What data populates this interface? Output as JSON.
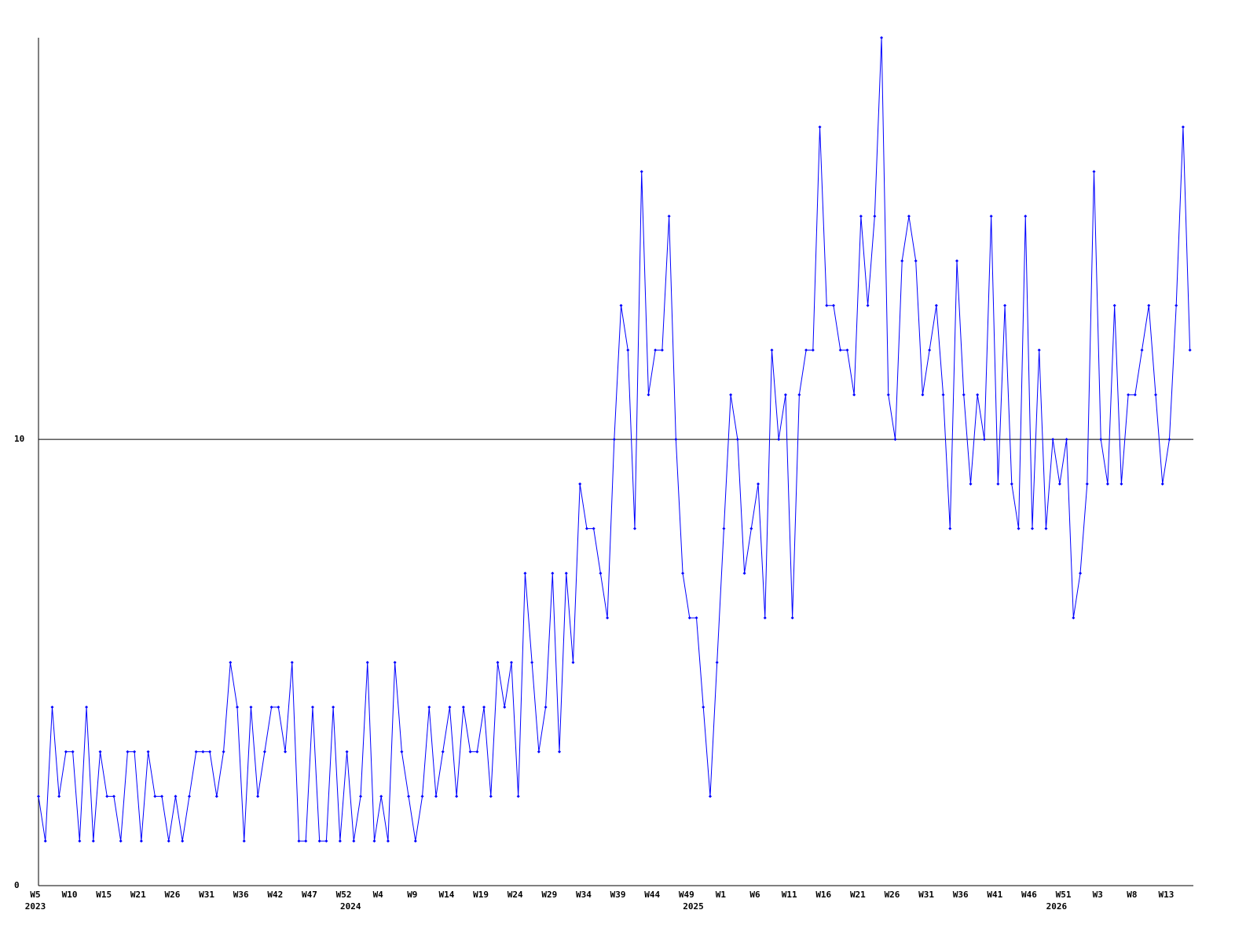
{
  "chart_data": {
    "type": "line",
    "categories": [
      "W5",
      null,
      null,
      null,
      null,
      "W10",
      null,
      null,
      null,
      null,
      "W15",
      null,
      null,
      null,
      null,
      "W21",
      null,
      null,
      null,
      null,
      "W26",
      null,
      null,
      null,
      null,
      "W31",
      null,
      null,
      null,
      null,
      "W36",
      null,
      null,
      null,
      null,
      "W42",
      null,
      null,
      null,
      null,
      "W47",
      null,
      null,
      null,
      null,
      "W52",
      null,
      null,
      null,
      null,
      "W4",
      null,
      null,
      null,
      null,
      "W9",
      null,
      null,
      null,
      null,
      "W14",
      null,
      null,
      null,
      null,
      "W19",
      null,
      null,
      null,
      null,
      "W24",
      null,
      null,
      null,
      null,
      "W29",
      null,
      null,
      null,
      null,
      "W34",
      null,
      null,
      null,
      null,
      "W39",
      null,
      null,
      null,
      null,
      "W44",
      null,
      null,
      null,
      null,
      "W49",
      null,
      null,
      null,
      null,
      "W1",
      null,
      null,
      null,
      null,
      "W6",
      null,
      null,
      null,
      null,
      "W11",
      null,
      null,
      null,
      null,
      "W16",
      null,
      null,
      null,
      null,
      "W21",
      null,
      null,
      null,
      null,
      "W26",
      null,
      null,
      null,
      null,
      "W31",
      null,
      null,
      null,
      null,
      "W36",
      null,
      null,
      null,
      null,
      "W41",
      null,
      null,
      null,
      null,
      "W46",
      null,
      null,
      null,
      null,
      "W51",
      null,
      null,
      null,
      null,
      "W3",
      null,
      null,
      null,
      null,
      "W8",
      null,
      null,
      null,
      null,
      "W13",
      null,
      null,
      null
    ],
    "years": [
      "2023",
      null,
      null,
      null,
      null,
      null,
      null,
      null,
      null,
      null,
      null,
      null,
      null,
      null,
      null,
      null,
      null,
      null,
      null,
      null,
      null,
      null,
      null,
      null,
      null,
      null,
      null,
      null,
      null,
      null,
      null,
      null,
      null,
      null,
      null,
      null,
      null,
      null,
      null,
      null,
      null,
      null,
      null,
      null,
      null,
      null,
      "2024",
      null,
      null,
      null,
      null,
      null,
      null,
      null,
      null,
      null,
      null,
      null,
      null,
      null,
      null,
      null,
      null,
      null,
      null,
      null,
      null,
      null,
      null,
      null,
      null,
      null,
      null,
      null,
      null,
      null,
      null,
      null,
      null,
      null,
      null,
      null,
      null,
      null,
      null,
      null,
      null,
      null,
      null,
      null,
      null,
      null,
      null,
      null,
      null,
      null,
      "2025",
      null,
      null,
      null,
      null,
      null,
      null,
      null,
      null,
      null,
      null,
      null,
      null,
      null,
      null,
      null,
      null,
      null,
      null,
      null,
      null,
      null,
      null,
      null,
      null,
      null,
      null,
      null,
      null,
      null,
      null,
      null,
      null,
      null,
      null,
      null,
      null,
      null,
      null,
      null,
      null,
      null,
      null,
      null,
      null,
      null,
      null,
      null,
      null,
      null,
      null,
      null,
      null,
      "2026",
      null,
      null,
      null,
      null,
      null,
      null,
      null,
      null,
      null,
      null,
      null,
      null,
      null,
      null,
      null
    ],
    "values": [
      2,
      1,
      4,
      2,
      3,
      3,
      1,
      4,
      1,
      3,
      2,
      2,
      1,
      3,
      3,
      1,
      3,
      2,
      2,
      1,
      2,
      1,
      2,
      3,
      3,
      3,
      2,
      3,
      5,
      4,
      1,
      4,
      2,
      3,
      4,
      4,
      3,
      5,
      1,
      1,
      4,
      1,
      1,
      4,
      1,
      3,
      1,
      2,
      5,
      1,
      2,
      1,
      5,
      3,
      2,
      1,
      2,
      4,
      2,
      3,
      4,
      2,
      4,
      3,
      3,
      4,
      2,
      5,
      4,
      5,
      2,
      7,
      5,
      3,
      4,
      7,
      3,
      7,
      5,
      9,
      8,
      8,
      7,
      6,
      10,
      13,
      12,
      8,
      16,
      11,
      12,
      12,
      15,
      10,
      7,
      6,
      6,
      4,
      2,
      5,
      8,
      11,
      10,
      7,
      8,
      9,
      6,
      12,
      10,
      11,
      6,
      11,
      12,
      12,
      17,
      13,
      13,
      12,
      12,
      11,
      15,
      13,
      15,
      19,
      11,
      10,
      14,
      15,
      14,
      11,
      12,
      13,
      11,
      8,
      14,
      11,
      9,
      11,
      10,
      15,
      9,
      13,
      9,
      8,
      15,
      8,
      12,
      8,
      10,
      9,
      10,
      6,
      7,
      9,
      16,
      10,
      9,
      13,
      9,
      11,
      11,
      12,
      13,
      11,
      9,
      10,
      13,
      17,
      12
    ],
    "color": "#0000ff",
    "ylim": [
      0,
      19
    ],
    "yticks": [
      0,
      10
    ],
    "grid": true
  }
}
